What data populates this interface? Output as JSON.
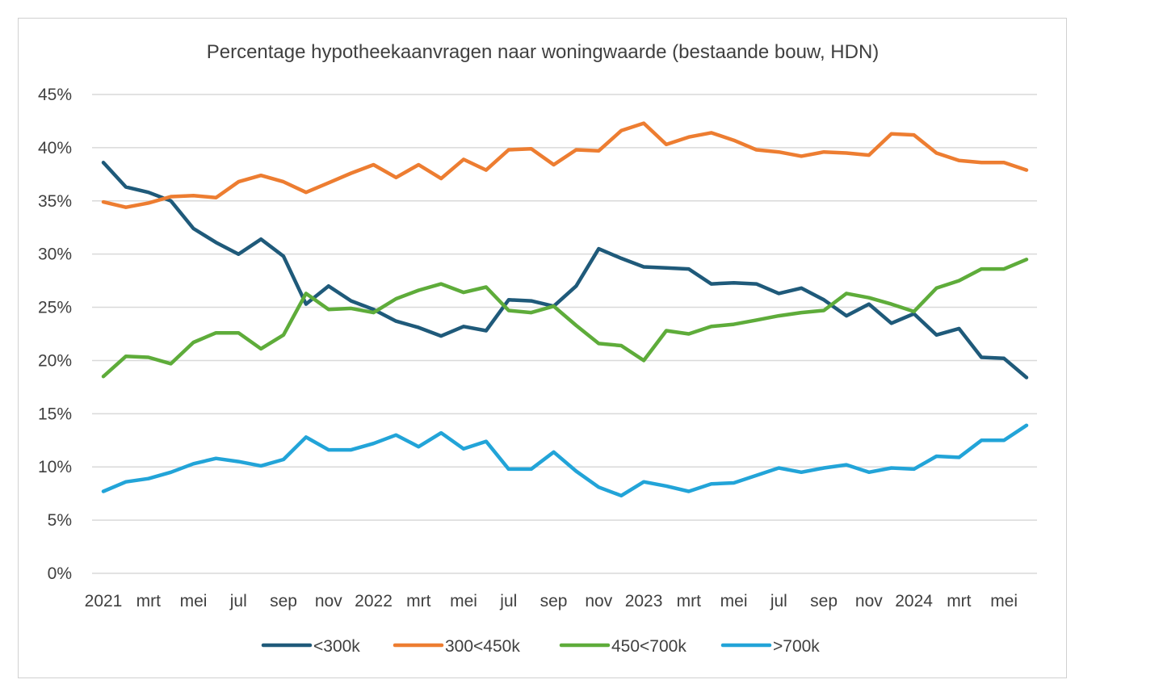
{
  "chart_data": {
    "type": "line",
    "title": "Percentage hypotheekaanvragen naar woningwaarde (bestaande bouw, HDN)",
    "xlabel": "",
    "ylabel": "",
    "ylim": [
      0,
      45
    ],
    "y_ticks": [
      "0%",
      "5%",
      "10%",
      "15%",
      "20%",
      "25%",
      "30%",
      "35%",
      "40%",
      "45%"
    ],
    "y_tick_values": [
      0,
      5,
      10,
      15,
      20,
      25,
      30,
      35,
      40,
      45
    ],
    "x_tick_labels": [
      "2021",
      "mrt",
      "mei",
      "jul",
      "sep",
      "nov",
      "2022",
      "mrt",
      "mei",
      "jul",
      "sep",
      "nov",
      "2023",
      "mrt",
      "mei",
      "jul",
      "sep",
      "nov",
      "2024",
      "mrt",
      "mei"
    ],
    "x": [
      "2021-01",
      "2021-02",
      "2021-03",
      "2021-04",
      "2021-05",
      "2021-06",
      "2021-07",
      "2021-08",
      "2021-09",
      "2021-10",
      "2021-11",
      "2021-12",
      "2022-01",
      "2022-02",
      "2022-03",
      "2022-04",
      "2022-05",
      "2022-06",
      "2022-07",
      "2022-08",
      "2022-09",
      "2022-10",
      "2022-11",
      "2022-12",
      "2023-01",
      "2023-02",
      "2023-03",
      "2023-04",
      "2023-05",
      "2023-06",
      "2023-07",
      "2023-08",
      "2023-09",
      "2023-10",
      "2023-11",
      "2023-12",
      "2024-01",
      "2024-02",
      "2024-03",
      "2024-04",
      "2024-05",
      "2024-06"
    ],
    "grid": true,
    "legend_position": "bottom",
    "series": [
      {
        "name": "<300k",
        "color": "#1f5a7a",
        "values": [
          38.6,
          36.3,
          35.8,
          35.0,
          32.4,
          31.1,
          30.0,
          31.4,
          29.8,
          25.3,
          27.0,
          25.6,
          24.8,
          23.7,
          23.1,
          22.3,
          23.2,
          22.8,
          25.7,
          25.6,
          25.1,
          27.0,
          30.5,
          29.6,
          28.8,
          28.7,
          28.6,
          27.2,
          27.3,
          27.2,
          26.3,
          26.8,
          25.7,
          24.2,
          25.3,
          23.5,
          24.4,
          22.4,
          23.0,
          20.3,
          20.2,
          18.4
        ]
      },
      {
        "name": "300<450k",
        "color": "#ed7d31",
        "values": [
          34.9,
          34.4,
          34.8,
          35.4,
          35.5,
          35.3,
          36.8,
          37.4,
          36.8,
          35.8,
          36.7,
          37.6,
          38.4,
          37.2,
          38.4,
          37.1,
          38.9,
          37.9,
          39.8,
          39.9,
          38.4,
          39.8,
          39.7,
          41.6,
          42.3,
          40.3,
          41.0,
          41.4,
          40.7,
          39.8,
          39.6,
          39.2,
          39.6,
          39.5,
          39.3,
          41.3,
          41.2,
          39.5,
          38.8,
          38.6,
          38.6,
          37.9
        ]
      },
      {
        "name": "450<700k",
        "color": "#5eac3a",
        "values": [
          18.5,
          20.4,
          20.3,
          19.7,
          21.7,
          22.6,
          22.6,
          21.1,
          22.4,
          26.3,
          24.8,
          24.9,
          24.5,
          25.8,
          26.6,
          27.2,
          26.4,
          26.9,
          24.7,
          24.5,
          25.1,
          23.3,
          21.6,
          21.4,
          20.0,
          22.8,
          22.5,
          23.2,
          23.4,
          23.8,
          24.2,
          24.5,
          24.7,
          26.3,
          25.9,
          25.3,
          24.6,
          26.8,
          27.5,
          28.6,
          28.6,
          29.5
        ]
      },
      {
        "name": ">700k",
        "color": "#22a4d8",
        "values": [
          7.7,
          8.6,
          8.9,
          9.5,
          10.3,
          10.8,
          10.5,
          10.1,
          10.7,
          12.8,
          11.6,
          11.6,
          12.2,
          13.0,
          11.9,
          13.2,
          11.7,
          12.4,
          9.8,
          9.8,
          11.4,
          9.6,
          8.1,
          7.3,
          8.6,
          8.2,
          7.7,
          8.4,
          8.5,
          9.2,
          9.9,
          9.5,
          9.9,
          10.2,
          9.5,
          9.9,
          9.8,
          11.0,
          10.9,
          12.5,
          12.5,
          13.9
        ]
      }
    ]
  }
}
